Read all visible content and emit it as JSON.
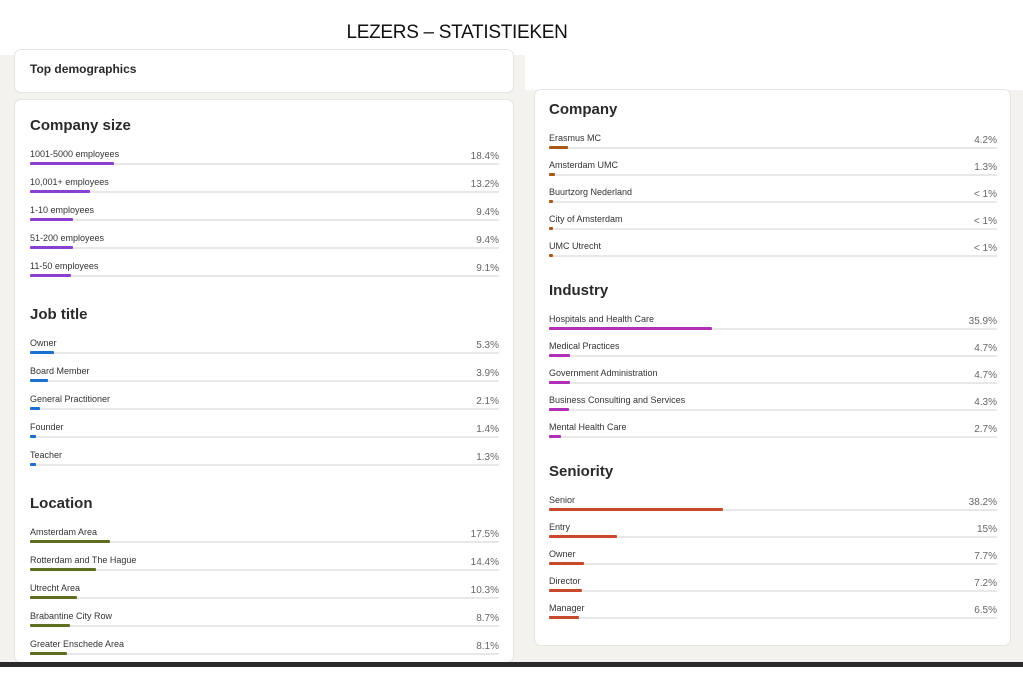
{
  "header": {
    "title": "LEZERS – STATISTIEKEN"
  },
  "top_card": {
    "title": "Top demographics"
  },
  "sections": [
    {
      "title": "Company size",
      "color": "#8b3fd1",
      "items": [
        {
          "label": "1001-5000 employees",
          "value": 18.4,
          "value_label": "18.4%"
        },
        {
          "label": "10,001+ employees",
          "value": 13.2,
          "value_label": "13.2%"
        },
        {
          "label": "1-10 employees",
          "value": 9.4,
          "value_label": "9.4%"
        },
        {
          "label": "51-200 employees",
          "value": 9.4,
          "value_label": "9.4%"
        },
        {
          "label": "11-50 employees",
          "value": 9.1,
          "value_label": "9.1%"
        }
      ]
    },
    {
      "title": "Job title",
      "color": "#1a6fd1",
      "items": [
        {
          "label": "Owner",
          "value": 5.3,
          "value_label": "5.3%"
        },
        {
          "label": "Board Member",
          "value": 3.9,
          "value_label": "3.9%"
        },
        {
          "label": "General Practitioner",
          "value": 2.1,
          "value_label": "2.1%"
        },
        {
          "label": "Founder",
          "value": 1.4,
          "value_label": "1.4%"
        },
        {
          "label": "Teacher",
          "value": 1.3,
          "value_label": "1.3%"
        }
      ]
    },
    {
      "title": "Location",
      "color": "#5d6e1e",
      "items": [
        {
          "label": "Amsterdam Area",
          "value": 17.5,
          "value_label": "17.5%"
        },
        {
          "label": "Rotterdam and The Hague",
          "value": 14.4,
          "value_label": "14.4%"
        },
        {
          "label": "Utrecht Area",
          "value": 10.3,
          "value_label": "10.3%"
        },
        {
          "label": "Brabantine City Row",
          "value": 8.7,
          "value_label": "8.7%"
        },
        {
          "label": "Greater Enschede Area",
          "value": 8.1,
          "value_label": "8.1%"
        }
      ]
    },
    {
      "title": "Company",
      "color": "#a85a14",
      "items": [
        {
          "label": "Erasmus MC",
          "value": 4.2,
          "value_label": "4.2%"
        },
        {
          "label": "Amsterdam UMC",
          "value": 1.3,
          "value_label": "1.3%"
        },
        {
          "label": "Buurtzorg Nederland",
          "value": 0.8,
          "value_label": "< 1%"
        },
        {
          "label": "City of Amsterdam",
          "value": 0.8,
          "value_label": "< 1%"
        },
        {
          "label": "UMC Utrecht",
          "value": 0.8,
          "value_label": "< 1%"
        }
      ]
    },
    {
      "title": "Industry",
      "color": "#b12fb5",
      "items": [
        {
          "label": "Hospitals and Health Care",
          "value": 35.9,
          "value_label": "35.9%"
        },
        {
          "label": "Medical Practices",
          "value": 4.7,
          "value_label": "4.7%"
        },
        {
          "label": "Government Administration",
          "value": 4.7,
          "value_label": "4.7%"
        },
        {
          "label": "Business Consulting and Services",
          "value": 4.3,
          "value_label": "4.3%"
        },
        {
          "label": "Mental Health Care",
          "value": 2.7,
          "value_label": "2.7%"
        }
      ]
    },
    {
      "title": "Seniority",
      "color": "#c9482b",
      "items": [
        {
          "label": "Senior",
          "value": 38.2,
          "value_label": "38.2%"
        },
        {
          "label": "Entry",
          "value": 15,
          "value_label": "15%"
        },
        {
          "label": "Owner",
          "value": 7.7,
          "value_label": "7.7%"
        },
        {
          "label": "Director",
          "value": 7.2,
          "value_label": "7.2%"
        },
        {
          "label": "Manager",
          "value": 6.5,
          "value_label": "6.5%"
        }
      ]
    }
  ]
}
